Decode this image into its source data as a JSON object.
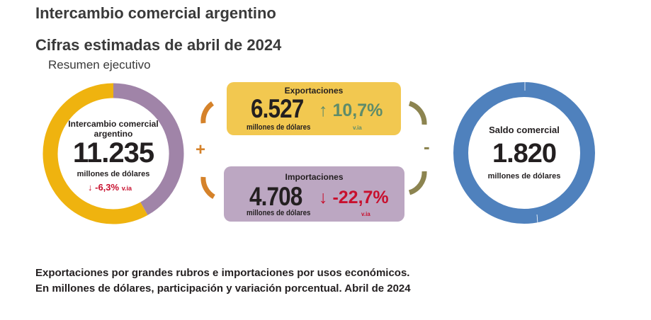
{
  "header": {
    "title": "Intercambio comercial argentino",
    "subtitle": "Cifras estimadas de abril de 2024",
    "section": "Resumen ejecutivo"
  },
  "intercambio": {
    "label": "Intercambio comercial argentino",
    "value": "11.235",
    "unit": "millones de dólares",
    "variation": "-6,3%",
    "variation_suffix": "v.ia",
    "arrow": "arrow-down-icon",
    "share_exports": 0.581,
    "share_imports": 0.419
  },
  "exportaciones": {
    "label": "Exportaciones",
    "value": "6.527",
    "unit": "millones de dólares",
    "variation": "10,7%",
    "variation_suffix": "v.ia",
    "arrow": "arrow-up-icon"
  },
  "importaciones": {
    "label": "Importaciones",
    "value": "4.708",
    "unit": "millones de dólares",
    "variation": "-22,7%",
    "variation_suffix": "v.ia",
    "arrow": "arrow-down-icon"
  },
  "saldo": {
    "label": "Saldo comercial",
    "value": "1.820",
    "unit": "millones de dólares"
  },
  "operators": {
    "plus": "+",
    "minus": "-"
  },
  "footer": {
    "line1": "Exportaciones por grandes rubros e importaciones por usos económicos.",
    "line2": "En millones de dólares, participación y variación porcentual. Abril de 2024"
  },
  "colors": {
    "exports": "#efb30f",
    "imports": "#a084a8",
    "exports_box": "#f2c850",
    "imports_box": "#bca7c2",
    "saldo": "#4f81bd",
    "up": "#5e8c6a",
    "down": "#c8102e",
    "bracket_left": "#d5822a",
    "bracket_right": "#8c8450"
  }
}
